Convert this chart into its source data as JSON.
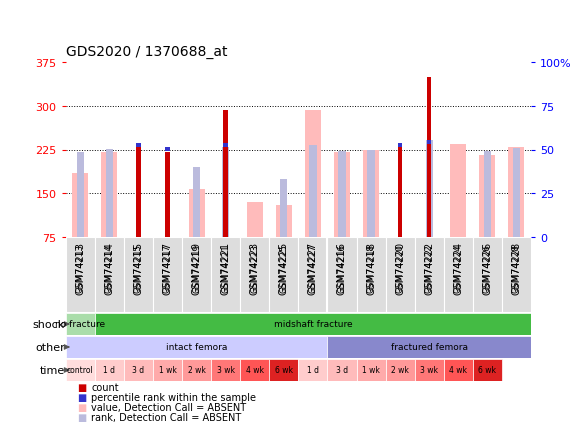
{
  "title": "GDS2020 / 1370688_at",
  "samples": [
    "GSM74213",
    "GSM74214",
    "GSM74215",
    "GSM74217",
    "GSM74219",
    "GSM74221",
    "GSM74223",
    "GSM74225",
    "GSM74227",
    "GSM74216",
    "GSM74218",
    "GSM74220",
    "GSM74222",
    "GSM74224",
    "GSM74226",
    "GSM74228"
  ],
  "count_values": [
    null,
    null,
    232,
    220,
    null,
    293,
    null,
    null,
    null,
    null,
    null,
    232,
    350,
    null,
    null,
    null
  ],
  "rank_values": [
    null,
    null,
    233,
    226,
    null,
    233,
    null,
    null,
    null,
    null,
    null,
    233,
    238,
    null,
    null,
    null
  ],
  "absent_value": [
    185,
    220,
    null,
    null,
    157,
    null,
    135,
    130,
    293,
    220,
    225,
    null,
    null,
    235,
    215,
    230
  ],
  "absent_rank": [
    220,
    226,
    null,
    null,
    195,
    230,
    null,
    175,
    232,
    222,
    225,
    null,
    241,
    null,
    222,
    228
  ],
  "ylim_left": [
    75,
    375
  ],
  "ylim_right": [
    0,
    100
  ],
  "yticks_left": [
    75,
    150,
    225,
    300,
    375
  ],
  "yticks_right": [
    0,
    25,
    50,
    75,
    100
  ],
  "color_count": "#cc0000",
  "color_rank": "#3333cc",
  "color_absent_val": "#ffbbbb",
  "color_absent_rank": "#bbbbdd",
  "shock_color_nofrac": "#aaddaa",
  "shock_color_mid": "#44bb44",
  "other_color_intact": "#ccccff",
  "other_color_frac": "#8888cc",
  "bg_color": "#ffffff",
  "plot_bg": "#ffffff",
  "time_colors": [
    "#ffdddd",
    "#ffcccc",
    "#ffbbbb",
    "#ffaaaa",
    "#ff9999",
    "#ff7777",
    "#ff5555",
    "#dd2222",
    "#ffcccc",
    "#ffbbbb",
    "#ffaaaa",
    "#ff9999",
    "#ff7777",
    "#ff5555",
    "#dd2222"
  ],
  "time_labels": [
    "control",
    "1 d",
    "3 d",
    "1 wk",
    "2 wk",
    "3 wk",
    "4 wk",
    "6 wk",
    "1 d",
    "3 d",
    "1 wk",
    "2 wk",
    "3 wk",
    "4 wk",
    "6 wk"
  ]
}
